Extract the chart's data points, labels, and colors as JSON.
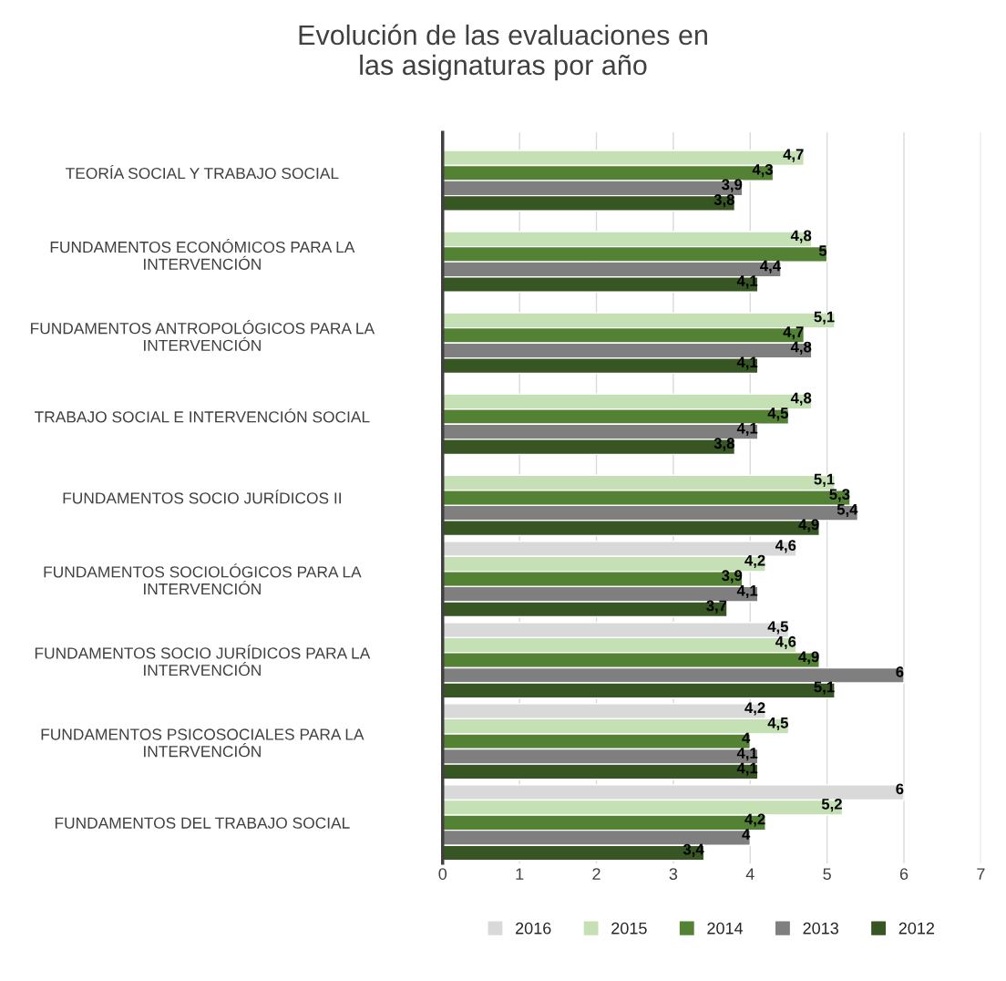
{
  "chart_data": {
    "type": "bar",
    "orientation": "horizontal",
    "title": "Evolución de las evaluaciones en\nlas asignaturas por año",
    "categories": [
      "TEORÍA SOCIAL Y TRABAJO SOCIAL",
      "FUNDAMENTOS ECONÓMICOS PARA LA\nINTERVENCIÓN",
      "FUNDAMENTOS ANTROPOLÓGICOS PARA LA\nINTERVENCIÓN",
      "TRABAJO SOCIAL E INTERVENCIÓN SOCIAL",
      "FUNDAMENTOS SOCIO JURÍDICOS II",
      "FUNDAMENTOS SOCIOLÓGICOS PARA LA\nINTERVENCIÓN",
      "FUNDAMENTOS SOCIO JURÍDICOS PARA LA\nINTERVENCIÓN",
      "FUNDAMENTOS PSICOSOCIALES PARA LA\nINTERVENCIÓN",
      "FUNDAMENTOS DEL TRABAJO SOCIAL"
    ],
    "series": [
      {
        "name": "2016",
        "color": "#d9d9d9",
        "values": [
          null,
          null,
          null,
          null,
          null,
          4.6,
          4.5,
          4.2,
          6
        ],
        "value_labels": [
          null,
          null,
          null,
          null,
          null,
          "4,6",
          "4,5",
          "4,2",
          "6"
        ]
      },
      {
        "name": "2015",
        "color": "#c5e0b4",
        "values": [
          4.7,
          4.8,
          5.1,
          4.8,
          5.1,
          4.2,
          4.6,
          4.5,
          5.2
        ],
        "value_labels": [
          "4,7",
          "4,8",
          "5,1",
          "4,8",
          "5,1",
          "4,2",
          "4,6",
          "4,5",
          "5,2"
        ]
      },
      {
        "name": "2014",
        "color": "#548235",
        "values": [
          4.3,
          5,
          4.7,
          4.5,
          5.3,
          3.9,
          4.9,
          4,
          4.2
        ],
        "value_labels": [
          "4,3",
          "5",
          "4,7",
          "4,5",
          "5,3",
          "3,9",
          "4,9",
          "4",
          "4,2"
        ]
      },
      {
        "name": "2013",
        "color": "#7f7f7f",
        "values": [
          3.9,
          4.4,
          4.8,
          4.1,
          5.4,
          4.1,
          6,
          4.1,
          4
        ],
        "value_labels": [
          "3,9",
          "4,4",
          "4,8",
          "4,1",
          "5,4",
          "4,1",
          "6",
          "4,1",
          "4"
        ]
      },
      {
        "name": "2012",
        "color": "#375623",
        "values": [
          3.8,
          4.1,
          4.1,
          3.8,
          4.9,
          3.7,
          5.1,
          4.1,
          3.4
        ],
        "value_labels": [
          "3,8",
          "4,1",
          "4,1",
          "3,8",
          "4,9",
          "3,7",
          "5,1",
          "4,1",
          "3,4"
        ]
      }
    ],
    "xlim": [
      0,
      7
    ],
    "xticks": [
      0,
      1,
      2,
      3,
      4,
      5,
      6,
      7
    ],
    "grid": "x",
    "legend": "bottom"
  }
}
